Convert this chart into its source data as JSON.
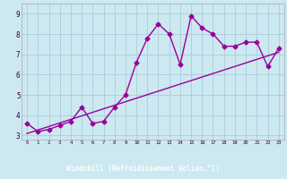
{
  "x": [
    0,
    1,
    2,
    3,
    4,
    5,
    6,
    7,
    8,
    9,
    10,
    11,
    12,
    13,
    14,
    15,
    16,
    17,
    18,
    19,
    20,
    21,
    22,
    23
  ],
  "y_line": [
    3.6,
    3.2,
    3.3,
    3.5,
    3.7,
    4.4,
    3.6,
    3.7,
    4.4,
    5.0,
    6.6,
    7.8,
    8.5,
    8.0,
    6.5,
    8.9,
    8.3,
    8.0,
    7.4,
    7.4,
    7.6,
    7.6,
    6.4,
    7.3
  ],
  "trend_x": [
    0,
    23
  ],
  "trend_y": [
    3.1,
    7.1
  ],
  "line_color": "#990099",
  "trend_color": "#990099",
  "bg_color": "#cce8f0",
  "grid_color": "#aaccdd",
  "label_bar_color": "#7700aa",
  "xlabel": "Windchill (Refroidissement éolien,°C)",
  "xlim": [
    -0.5,
    23.5
  ],
  "ylim": [
    2.8,
    9.5
  ],
  "xticks": [
    0,
    1,
    2,
    3,
    4,
    5,
    6,
    7,
    8,
    9,
    10,
    11,
    12,
    13,
    14,
    15,
    16,
    17,
    18,
    19,
    20,
    21,
    22,
    23
  ],
  "yticks": [
    3,
    4,
    5,
    6,
    7,
    8,
    9
  ],
  "marker": "D",
  "markersize": 2.5,
  "linewidth": 1.0
}
